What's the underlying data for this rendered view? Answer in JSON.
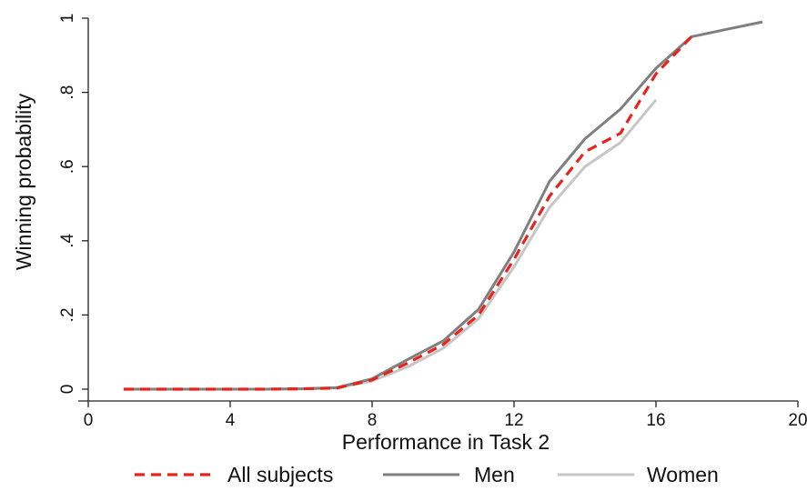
{
  "chart_data": {
    "type": "line",
    "xlabel": "Performance in Task 2",
    "ylabel": "Winning probability",
    "xlim": [
      0,
      20
    ],
    "ylim": [
      0,
      1
    ],
    "xticks": [
      0,
      4,
      8,
      12,
      16,
      20
    ],
    "xtick_labels": [
      "0",
      "4",
      "8",
      "12",
      "16",
      "20"
    ],
    "yticks": [
      0,
      0.2,
      0.4,
      0.6,
      0.8,
      1
    ],
    "ytick_labels": [
      "0",
      ".2",
      ".4",
      ".6",
      ".8",
      "1"
    ],
    "grid": false,
    "legend_position": "bottom",
    "series": [
      {
        "name": "All subjects",
        "color": "#e8231c",
        "dash": "dashed",
        "x": [
          1,
          2,
          3,
          4,
          5,
          6,
          7,
          8,
          9,
          10,
          11,
          12,
          13,
          14,
          15,
          16,
          17
        ],
        "y": [
          0,
          0,
          0,
          0,
          0,
          0.001,
          0.003,
          0.025,
          0.07,
          0.12,
          0.2,
          0.35,
          0.52,
          0.64,
          0.69,
          0.85,
          0.95
        ]
      },
      {
        "name": "Men",
        "color": "#7f7f7f",
        "dash": "solid",
        "x": [
          1,
          2,
          3,
          4,
          5,
          6,
          7,
          8,
          9,
          10,
          11,
          12,
          13,
          14,
          15,
          16,
          17,
          18,
          19
        ],
        "y": [
          0,
          0,
          0,
          0,
          0,
          0.001,
          0.004,
          0.028,
          0.08,
          0.13,
          0.215,
          0.37,
          0.56,
          0.675,
          0.755,
          0.865,
          0.95,
          0.97,
          0.99
        ]
      },
      {
        "name": "Women",
        "color": "#c6c6c6",
        "dash": "solid",
        "x": [
          5,
          6,
          7,
          8,
          9,
          10,
          11,
          12,
          13,
          14,
          15,
          16
        ],
        "y": [
          0,
          0.001,
          0.003,
          0.022,
          0.06,
          0.11,
          0.19,
          0.33,
          0.49,
          0.6,
          0.665,
          0.78
        ]
      }
    ]
  }
}
